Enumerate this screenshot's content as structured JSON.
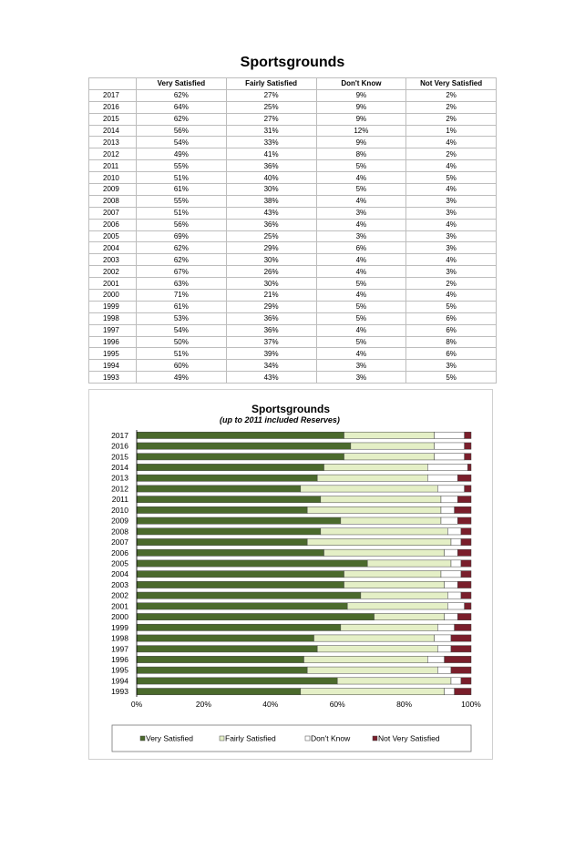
{
  "page_title": "Sportsgrounds",
  "table": {
    "headers": [
      "",
      "Very Satisfied",
      "Fairly Satisfied",
      "Don't Know",
      "Not Very Satisfied"
    ],
    "rows": [
      [
        "2017",
        "62%",
        "27%",
        "9%",
        "2%"
      ],
      [
        "2016",
        "64%",
        "25%",
        "9%",
        "2%"
      ],
      [
        "2015",
        "62%",
        "27%",
        "9%",
        "2%"
      ],
      [
        "2014",
        "56%",
        "31%",
        "12%",
        "1%"
      ],
      [
        "2013",
        "54%",
        "33%",
        "9%",
        "4%"
      ],
      [
        "2012",
        "49%",
        "41%",
        "8%",
        "2%"
      ],
      [
        "2011",
        "55%",
        "36%",
        "5%",
        "4%"
      ],
      [
        "2010",
        "51%",
        "40%",
        "4%",
        "5%"
      ],
      [
        "2009",
        "61%",
        "30%",
        "5%",
        "4%"
      ],
      [
        "2008",
        "55%",
        "38%",
        "4%",
        "3%"
      ],
      [
        "2007",
        "51%",
        "43%",
        "3%",
        "3%"
      ],
      [
        "2006",
        "56%",
        "36%",
        "4%",
        "4%"
      ],
      [
        "2005",
        "69%",
        "25%",
        "3%",
        "3%"
      ],
      [
        "2004",
        "62%",
        "29%",
        "6%",
        "3%"
      ],
      [
        "2003",
        "62%",
        "30%",
        "4%",
        "4%"
      ],
      [
        "2002",
        "67%",
        "26%",
        "4%",
        "3%"
      ],
      [
        "2001",
        "63%",
        "30%",
        "5%",
        "2%"
      ],
      [
        "2000",
        "71%",
        "21%",
        "4%",
        "4%"
      ],
      [
        "1999",
        "61%",
        "29%",
        "5%",
        "5%"
      ],
      [
        "1998",
        "53%",
        "36%",
        "5%",
        "6%"
      ],
      [
        "1997",
        "54%",
        "36%",
        "4%",
        "6%"
      ],
      [
        "1996",
        "50%",
        "37%",
        "5%",
        "8%"
      ],
      [
        "1995",
        "51%",
        "39%",
        "4%",
        "6%"
      ],
      [
        "1994",
        "60%",
        "34%",
        "3%",
        "3%"
      ],
      [
        "1993",
        "49%",
        "43%",
        "3%",
        "5%"
      ]
    ]
  },
  "chart_data": {
    "type": "bar",
    "orientation": "horizontal",
    "stacking": "percent",
    "title": "Sportsgrounds",
    "subtitle": "(up to 2011 included Reserves)",
    "categories": [
      "2017",
      "2016",
      "2015",
      "2014",
      "2013",
      "2012",
      "2011",
      "2010",
      "2009",
      "2008",
      "2007",
      "2006",
      "2005",
      "2004",
      "2003",
      "2002",
      "2001",
      "2000",
      "1999",
      "1998",
      "1997",
      "1996",
      "1995",
      "1994",
      "1993"
    ],
    "series": [
      {
        "name": "Very Satisfied",
        "color": "#4b6a2c",
        "values": [
          62,
          64,
          62,
          56,
          54,
          49,
          55,
          51,
          61,
          55,
          51,
          56,
          69,
          62,
          62,
          67,
          63,
          71,
          61,
          53,
          54,
          50,
          51,
          60,
          49
        ]
      },
      {
        "name": "Fairly Satisfied",
        "color": "#e4efc6",
        "values": [
          27,
          25,
          27,
          31,
          33,
          41,
          36,
          40,
          30,
          38,
          43,
          36,
          25,
          29,
          30,
          26,
          30,
          21,
          29,
          36,
          36,
          37,
          39,
          34,
          43
        ]
      },
      {
        "name": "Don't Know",
        "color": "#ffffff",
        "values": [
          9,
          9,
          9,
          12,
          9,
          8,
          5,
          4,
          5,
          4,
          3,
          4,
          3,
          6,
          4,
          4,
          5,
          4,
          5,
          5,
          4,
          5,
          4,
          3,
          3
        ]
      },
      {
        "name": "Not Very Satisfied",
        "color": "#7a1e2b",
        "values": [
          2,
          2,
          2,
          1,
          4,
          2,
          4,
          5,
          4,
          3,
          3,
          4,
          3,
          3,
          4,
          3,
          2,
          4,
          5,
          6,
          6,
          8,
          6,
          3,
          5
        ]
      }
    ],
    "x_ticks": [
      "0%",
      "20%",
      "40%",
      "60%",
      "80%",
      "100%"
    ],
    "xlim": [
      0,
      100
    ],
    "grid": false,
    "legend_position": "bottom"
  }
}
